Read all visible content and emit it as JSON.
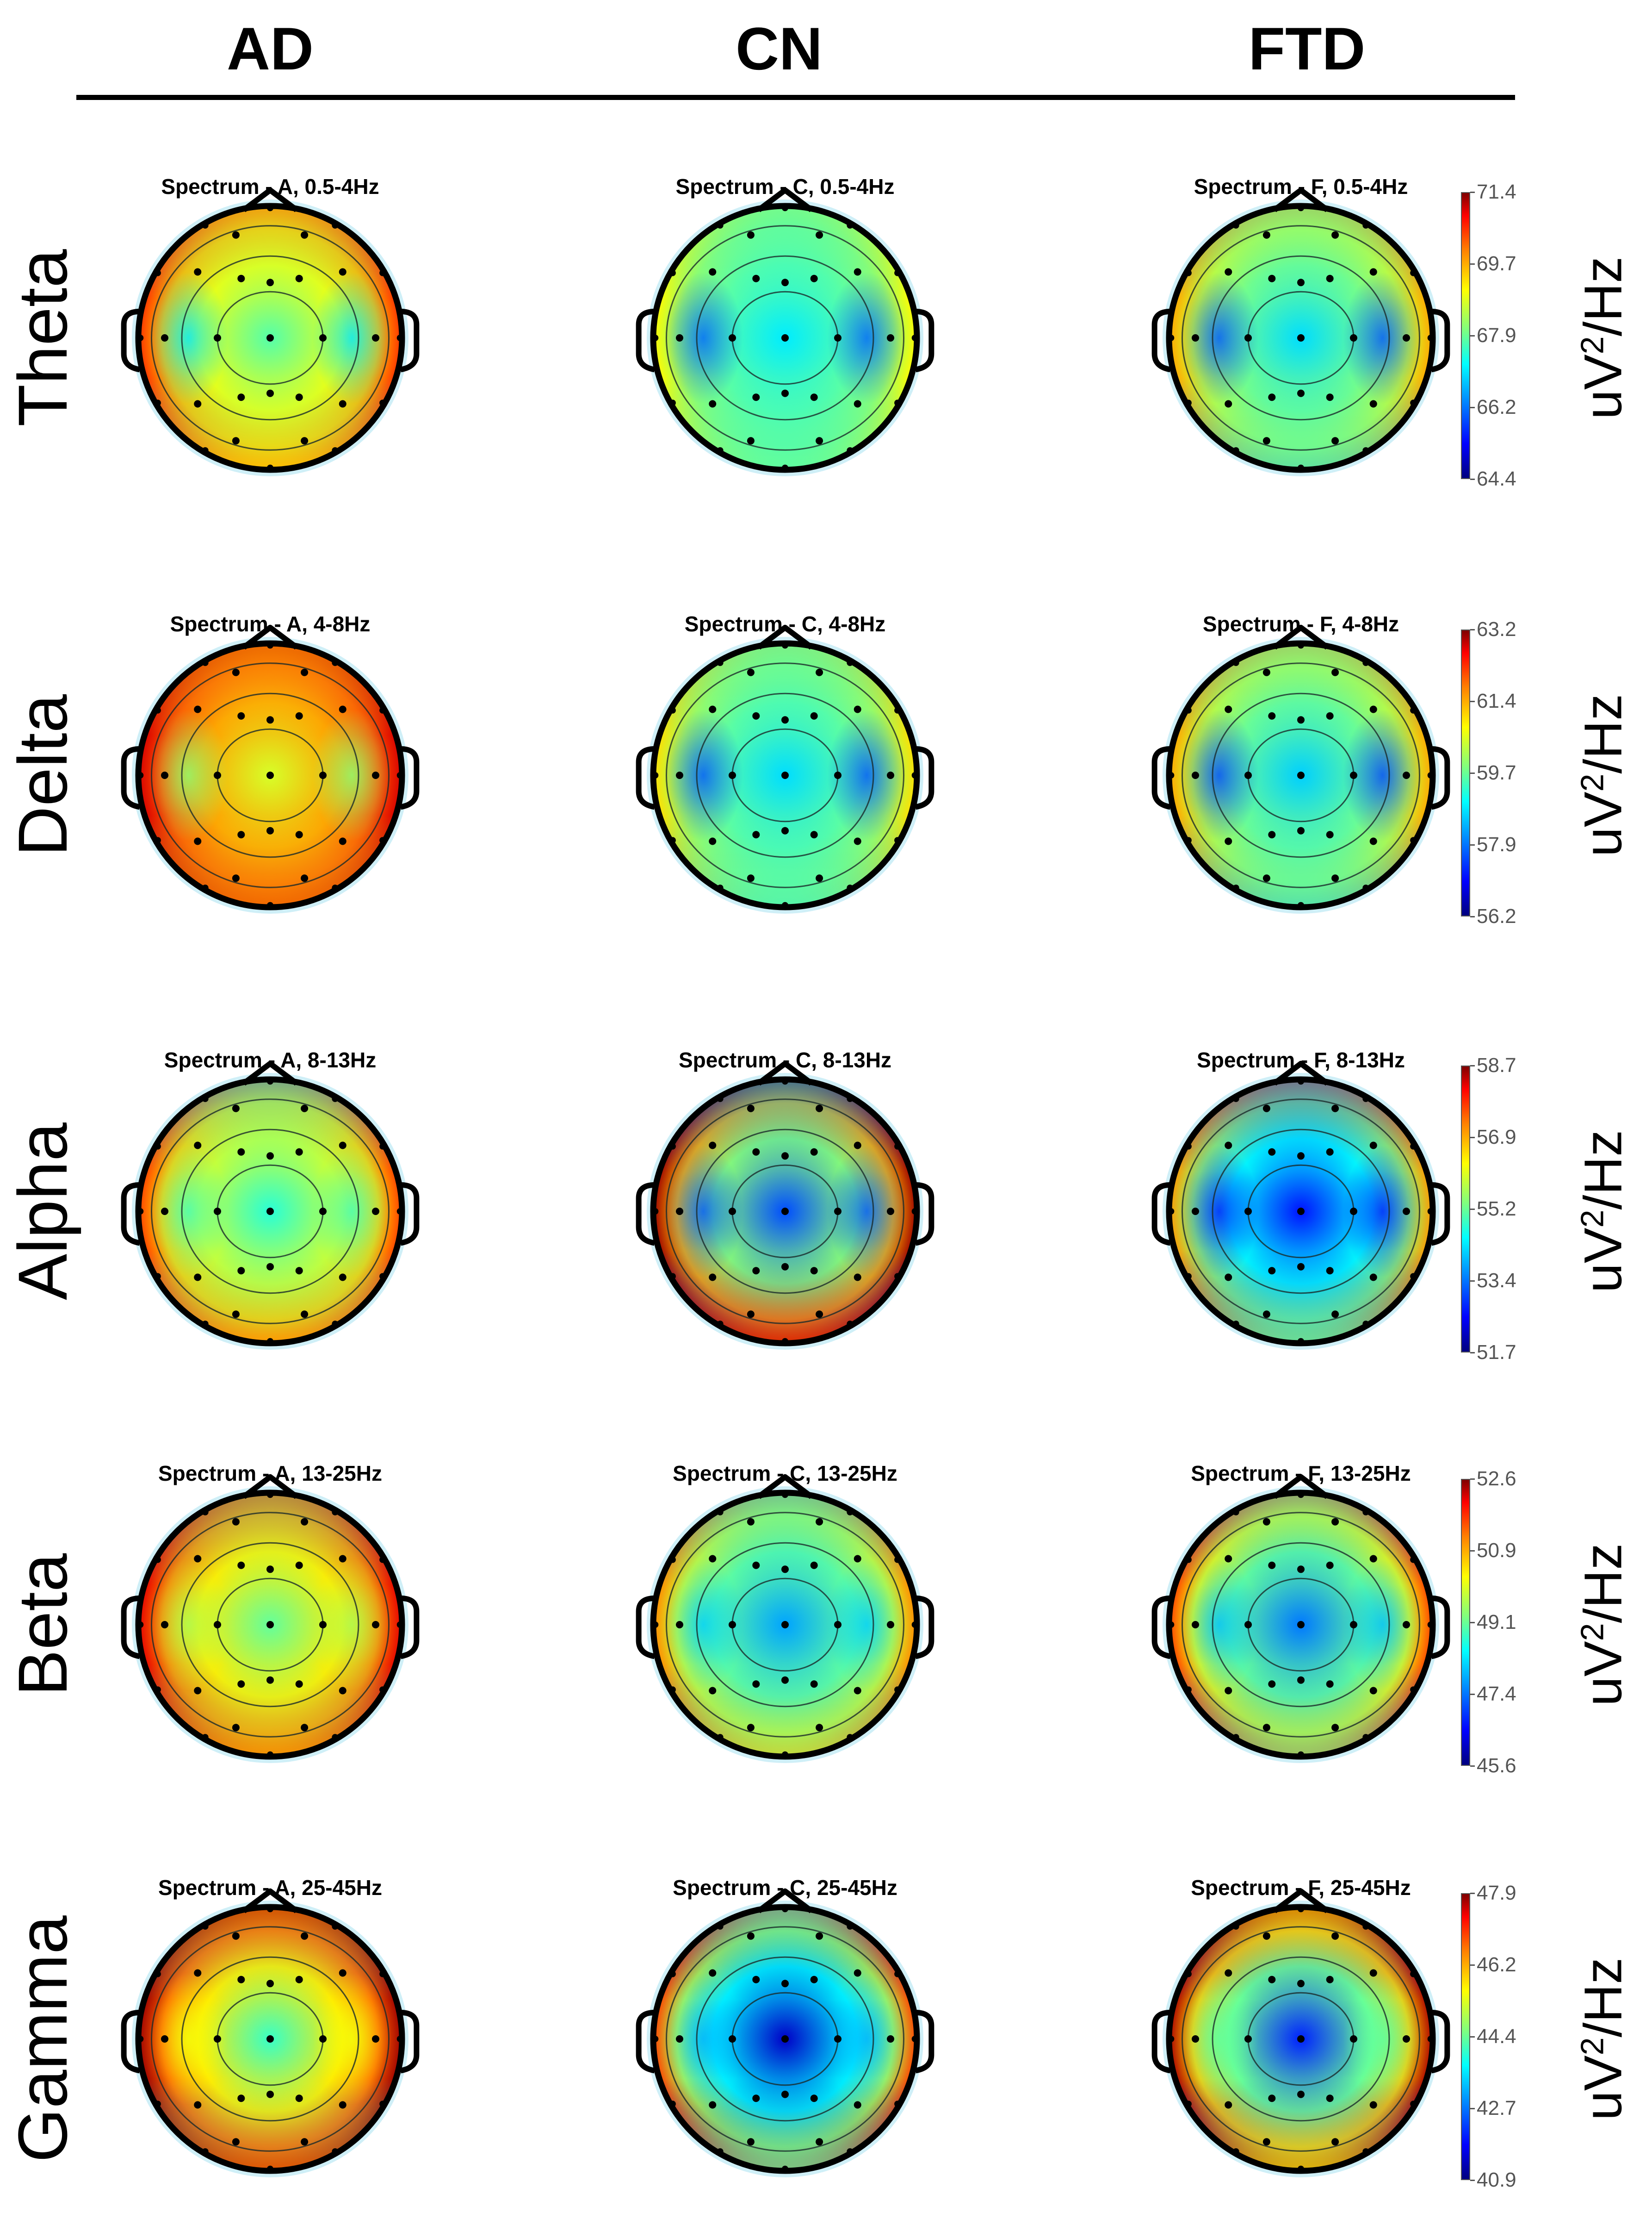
{
  "chart_data": {
    "type": "heatmap",
    "description_kind": "EEG scalp topography spectrum maps",
    "columns": [
      "AD",
      "CN",
      "FTD"
    ],
    "group_codes": [
      "A",
      "C",
      "F"
    ],
    "colormap": [
      "#00007f",
      "#0000ff",
      "#0080ff",
      "#00ffff",
      "#7fff7f",
      "#ffff00",
      "#ff8000",
      "#ff0000",
      "#7f0000"
    ],
    "unit": {
      "base": "uV",
      "exp": "2",
      "tail": "/Hz"
    },
    "rows": [
      {
        "label": "Theta",
        "titles": [
          "Spectrum - A, 0.5-4Hz",
          "Spectrum - C, 0.5-4Hz",
          "Spectrum - F, 0.5-4Hz"
        ],
        "colorbar_ticks": [
          "71.4",
          "69.7",
          "67.9",
          "66.2",
          "64.4"
        ],
        "range": [
          64.4,
          71.4
        ],
        "approx_values": [
          {
            "center": 67.6,
            "temporal": 66.9,
            "front": 68.6,
            "rear": 68.8,
            "rim": 70.2
          },
          {
            "center": 66.9,
            "temporal": 66.0,
            "front": 67.0,
            "rear": 67.2,
            "rim": 68.8
          },
          {
            "center": 66.8,
            "temporal": 65.9,
            "front": 67.5,
            "rear": 67.2,
            "rim": 69.4
          }
        ]
      },
      {
        "label": "Delta",
        "titles": [
          "Spectrum - A, 4-8Hz",
          "Spectrum - C, 4-8Hz",
          "Spectrum - F, 4-8Hz"
        ],
        "colorbar_ticks": [
          "63.2",
          "61.4",
          "59.7",
          "57.9",
          "56.2"
        ],
        "range": [
          56.2,
          63.2
        ],
        "approx_values": [
          {
            "center": 60.3,
            "temporal": 59.8,
            "front": 61.0,
            "rear": 61.3,
            "rim": 62.6
          },
          {
            "center": 58.6,
            "temporal": 57.7,
            "front": 58.9,
            "rear": 58.9,
            "rim": 60.8
          },
          {
            "center": 58.5,
            "temporal": 57.6,
            "front": 59.3,
            "rear": 58.9,
            "rim": 61.2
          }
        ]
      },
      {
        "label": "Alpha",
        "titles": [
          "Spectrum - A, 8-13Hz",
          "Spectrum - C, 8-13Hz",
          "Spectrum - F, 8-13Hz"
        ],
        "colorbar_ticks": [
          "58.7",
          "56.9",
          "55.2",
          "53.4",
          "51.7"
        ],
        "range": [
          51.7,
          58.7
        ],
        "approx_values": [
          {
            "center": 54.6,
            "temporal": 54.8,
            "front": 54.4,
            "rear": 56.5,
            "rim": 57.4
          },
          {
            "center": 53.1,
            "temporal": 53.2,
            "front": 54.0,
            "rear": 57.4,
            "rim": 58.5
          },
          {
            "center": 52.7,
            "temporal": 52.8,
            "front": 53.2,
            "rear": 54.6,
            "rim": 56.8
          }
        ]
      },
      {
        "label": "Beta",
        "titles": [
          "Spectrum - A, 13-25Hz",
          "Spectrum - C, 13-25Hz",
          "Spectrum - F, 13-25Hz"
        ],
        "colorbar_ticks": [
          "52.6",
          "50.9",
          "49.1",
          "47.4",
          "45.6"
        ],
        "range": [
          45.6,
          52.6
        ],
        "approx_values": [
          {
            "center": 48.9,
            "temporal": 49.4,
            "front": 49.2,
            "rear": 50.3,
            "rim": 51.9
          },
          {
            "center": 47.6,
            "temporal": 47.9,
            "front": 48.2,
            "rear": 49.4,
            "rim": 50.8
          },
          {
            "center": 47.3,
            "temporal": 47.8,
            "front": 48.6,
            "rear": 49.0,
            "rim": 51.3
          }
        ]
      },
      {
        "label": "Gamma",
        "titles": [
          "Spectrum - A, 25-45Hz",
          "Spectrum - C, 25-45Hz",
          "Spectrum - F, 25-45Hz"
        ],
        "colorbar_ticks": [
          "47.9",
          "46.2",
          "44.4",
          "42.7",
          "40.9"
        ],
        "range": [
          40.9,
          47.9
        ],
        "approx_values": [
          {
            "center": 43.9,
            "temporal": 45.2,
            "front": 46.0,
            "rear": 46.2,
            "rim": 47.7
          },
          {
            "center": 41.4,
            "temporal": 43.0,
            "front": 43.6,
            "rear": 44.0,
            "rim": 46.6
          },
          {
            "center": 42.0,
            "temporal": 44.2,
            "front": 45.3,
            "rear": 45.2,
            "rim": 47.6
          }
        ]
      }
    ]
  }
}
